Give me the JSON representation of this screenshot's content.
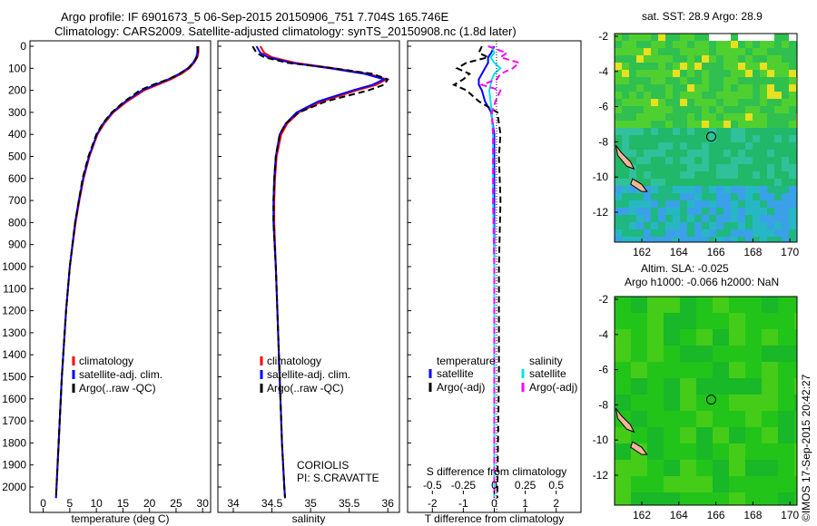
{
  "title": [
    "Argo profile: IF 6901673_5 06-Sep-2015 20150906_751 7.704S 165.746E",
    "Climatology: CARS2009. Satellite-adjusted climatology: synTS_20150908.nc (1.8d later)"
  ],
  "colors": {
    "climatology": "#ff0000",
    "satellite": "#0000ff",
    "argo": "#000000",
    "sal_satellite": "#00e5e5",
    "sal_argo": "#ff00ff"
  },
  "chart_data": [
    {
      "type": "line",
      "xlabel": "temperature (deg C)",
      "xlim": [
        -2.5,
        31.5
      ],
      "ylim": [
        2060,
        0
      ],
      "xticks": [
        0,
        5,
        10,
        15,
        20,
        25,
        30
      ],
      "yticks": [
        0,
        100,
        200,
        300,
        400,
        500,
        600,
        700,
        800,
        900,
        1000,
        1100,
        1200,
        1300,
        1400,
        1500,
        1600,
        1700,
        1800,
        1900,
        2000
      ],
      "legend": [
        "climatology",
        "satellite-adj. clim.",
        "Argo(..raw -QC)"
      ],
      "depth": [
        0,
        30,
        50,
        75,
        100,
        125,
        150,
        175,
        200,
        250,
        300,
        350,
        400,
        500,
        600,
        700,
        800,
        1000,
        1200,
        1500,
        1800,
        2000,
        2050
      ],
      "series": [
        {
          "name": "climatology",
          "values": [
            29.2,
            29.2,
            29,
            28.4,
            27.5,
            26,
            24,
            21.5,
            19,
            15.8,
            13.2,
            11.5,
            10.2,
            8.7,
            7.6,
            6.8,
            6.1,
            5.0,
            4.3,
            3.5,
            2.9,
            2.5,
            2.4
          ]
        },
        {
          "name": "satellite-adj. clim.",
          "values": [
            29,
            29,
            28.8,
            28.2,
            27.2,
            25.6,
            23.6,
            21,
            18.6,
            15.5,
            13,
            11.3,
            10.1,
            8.6,
            7.5,
            6.7,
            6.0,
            5.0,
            4.3,
            3.5,
            2.9,
            2.5,
            2.4
          ]
        },
        {
          "name": "Argo(..raw -QC)",
          "values": [
            29.1,
            29.1,
            28.9,
            28.3,
            27.3,
            25.7,
            23.5,
            20.6,
            18.2,
            15.3,
            12.9,
            11.2,
            10.0,
            8.5,
            7.4,
            6.7,
            6.0,
            5.0,
            4.3,
            3.5,
            2.9,
            2.5,
            2.4
          ]
        }
      ]
    },
    {
      "type": "line",
      "xlabel": "salinity",
      "xlim": [
        33.8,
        36.15
      ],
      "ylim": [
        2060,
        0
      ],
      "xticks": [
        34,
        34.5,
        35,
        35.5,
        36
      ],
      "legend": [
        "climatology",
        "satellite-adj. clim.",
        "Argo(..raw -QC)"
      ],
      "annotation": [
        "CORIOLIS",
        "PI: S.CRAVATTE"
      ],
      "depth": [
        0,
        30,
        50,
        75,
        100,
        125,
        150,
        175,
        200,
        250,
        300,
        350,
        400,
        500,
        600,
        700,
        800,
        1000,
        1200,
        1500,
        1800,
        2000,
        2050
      ],
      "series": [
        {
          "name": "climatology",
          "values": [
            34.35,
            34.4,
            34.5,
            34.8,
            35.3,
            35.75,
            35.98,
            35.85,
            35.6,
            35.15,
            34.85,
            34.7,
            34.62,
            34.56,
            34.54,
            34.53,
            34.53,
            34.55,
            34.57,
            34.6,
            34.63,
            34.66,
            34.67
          ]
        },
        {
          "name": "satellite-adj. clim.",
          "values": [
            34.3,
            34.35,
            34.45,
            34.75,
            35.25,
            35.7,
            35.95,
            35.8,
            35.55,
            35.1,
            34.82,
            34.68,
            34.6,
            34.55,
            34.53,
            34.52,
            34.52,
            34.55,
            34.57,
            34.6,
            34.63,
            34.66,
            34.67
          ]
        },
        {
          "name": "Argo(..raw -QC)",
          "values": [
            34.25,
            34.3,
            34.4,
            34.7,
            35.3,
            35.8,
            36.0,
            35.95,
            35.75,
            35.2,
            34.85,
            34.68,
            34.6,
            34.55,
            34.53,
            34.52,
            34.52,
            34.55,
            34.57,
            34.6,
            34.63,
            34.66,
            34.67
          ]
        }
      ]
    },
    {
      "type": "line",
      "xlabel": "T difference from climatology",
      "x2label": "S difference from climatology",
      "xlim": [
        -2.8,
        2.8
      ],
      "x2lim": [
        -0.7,
        0.7
      ],
      "xticks": [
        -2,
        -1,
        0,
        1,
        2
      ],
      "x2ticks": [
        -0.5,
        -0.25,
        0,
        0.25,
        0.5
      ],
      "x2ticklabels": [
        "-0.5",
        "-0.25",
        "0",
        "0.25",
        "0.5"
      ],
      "legend_t": {
        "title": "temperature",
        "items": [
          "satellite",
          "Argo(-adj)"
        ]
      },
      "legend_s": {
        "title": "salinity",
        "items": [
          "satellite",
          "Argo(-adj)"
        ]
      },
      "depth": [
        0,
        30,
        50,
        75,
        100,
        125,
        150,
        175,
        200,
        250,
        300,
        400,
        500,
        700,
        1000,
        1500,
        2000,
        2050
      ],
      "series": [
        {
          "name": "T satellite",
          "values": [
            0,
            -0.1,
            -0.2,
            -0.2,
            -0.3,
            -0.4,
            -0.5,
            -0.5,
            -0.4,
            -0.3,
            -0.1,
            0,
            0,
            0,
            0,
            0,
            0,
            0
          ]
        },
        {
          "name": "T Argo(-adj)",
          "values": [
            -0.4,
            -0.5,
            -0.2,
            -0.9,
            -1.2,
            -0.8,
            -1.0,
            -1.3,
            -0.9,
            -0.5,
            0.1,
            0.2,
            0.15,
            0.2,
            0.15,
            0.15,
            0.1,
            0.1
          ]
        },
        {
          "name": "S satellite",
          "values": [
            -0.02,
            0,
            -0.03,
            0,
            0.05,
            0,
            -0.02,
            -0.03,
            -0.04,
            -0.03,
            -0.02,
            -0.01,
            -0.01,
            -0.01,
            0,
            0,
            0,
            0
          ]
        },
        {
          "name": "S Argo(-adj)",
          "values": [
            -0.05,
            0.1,
            0.05,
            0.2,
            0.15,
            0.05,
            0.02,
            -0.1,
            0.05,
            0.01,
            -0.02,
            -0.01,
            -0.01,
            -0.01,
            0,
            0,
            0,
            0
          ]
        }
      ]
    }
  ],
  "map_sst": {
    "title": "sat. SST: 28.9 Argo: 28.9",
    "xticks": [
      162,
      164,
      166,
      168,
      170
    ],
    "yticks": [
      -2,
      -4,
      -6,
      -8,
      -10,
      -12
    ],
    "profile_lon": 165.746,
    "profile_lat": -7.704
  },
  "map_sla": {
    "title1": "Altim. SLA: -0.025",
    "title2": "Argo h1000: -0.066 h2000: NaN",
    "xticks": [
      162,
      164,
      166,
      168,
      170
    ],
    "yticks": [
      -2,
      -4,
      -6,
      -8,
      -10,
      -12
    ]
  },
  "stamp": "©IMOS 17-Sep-2015 20:42:27"
}
